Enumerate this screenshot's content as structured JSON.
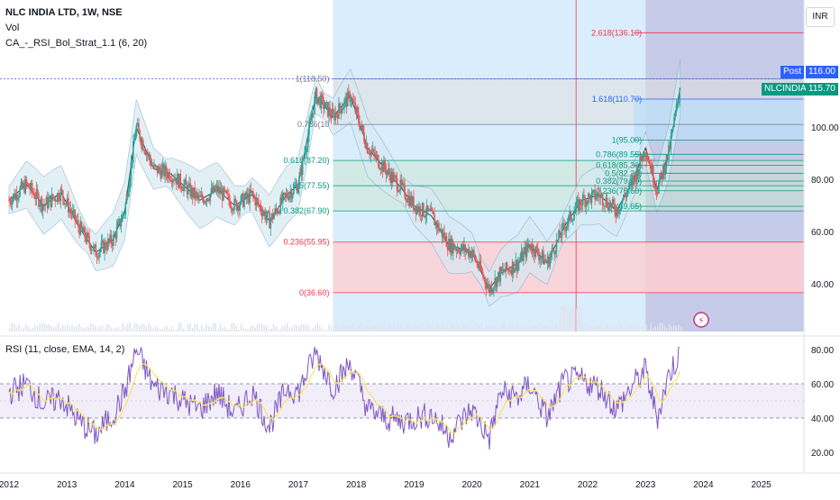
{
  "header": {
    "title": "NLC INDIA LTD, 1W, NSE",
    "vol": "Vol",
    "indicator": "CA_-_RSI_Bol_Strat_1.1 (6, 20)",
    "rsi_label": "RSI (11, close, EMA, 14, 2)"
  },
  "currency_button": "INR",
  "price_tags": [
    {
      "label": "Post",
      "value": "116.00",
      "color": "#2962ff"
    },
    {
      "label": "NLCINDIA",
      "value": "115.70",
      "color": "#089981"
    }
  ],
  "colors": {
    "up": "#26a69a",
    "down": "#ef5350",
    "bollinger": "#8fb4c9",
    "bb_fill": "#d6eaf3",
    "rsi": "#7e57c2",
    "rsi_ema": "#f7e463",
    "fib_red": "#f23645",
    "fib_blue": "#2962ff"
  },
  "chart_data": [
    {
      "type": "candlestick",
      "title": "NLC INDIA LTD, 1W, NSE",
      "x_ticks": [
        "2012",
        "2013",
        "2014",
        "2015",
        "2016",
        "2017",
        "2018",
        "2019",
        "2020",
        "2021",
        "2022",
        "2023",
        "2024",
        "2025"
      ],
      "y_ticks": [
        "40.00",
        "60.00",
        "80.00",
        "100.00"
      ],
      "ylim": [
        35,
        145
      ],
      "grid": false,
      "price_approx": [
        [
          2012.0,
          72
        ],
        [
          2012.3,
          78
        ],
        [
          2012.6,
          70
        ],
        [
          2012.9,
          75
        ],
        [
          2013.2,
          62
        ],
        [
          2013.5,
          52
        ],
        [
          2013.8,
          57
        ],
        [
          2014.0,
          68
        ],
        [
          2014.2,
          100
        ],
        [
          2014.5,
          84
        ],
        [
          2014.8,
          82
        ],
        [
          2015.0,
          78
        ],
        [
          2015.3,
          72
        ],
        [
          2015.6,
          76
        ],
        [
          2015.9,
          70
        ],
        [
          2016.2,
          74
        ],
        [
          2016.5,
          64
        ],
        [
          2016.8,
          74
        ],
        [
          2017.0,
          78
        ],
        [
          2017.3,
          112
        ],
        [
          2017.6,
          104
        ],
        [
          2017.9,
          112
        ],
        [
          2018.2,
          92
        ],
        [
          2018.5,
          84
        ],
        [
          2018.8,
          76
        ],
        [
          2019.0,
          70
        ],
        [
          2019.3,
          66
        ],
        [
          2019.6,
          55
        ],
        [
          2020.0,
          52
        ],
        [
          2020.3,
          38
        ],
        [
          2020.5,
          44
        ],
        [
          2020.8,
          48
        ],
        [
          2021.0,
          55
        ],
        [
          2021.3,
          48
        ],
        [
          2021.6,
          62
        ],
        [
          2021.9,
          72
        ],
        [
          2022.2,
          74
        ],
        [
          2022.5,
          68
        ],
        [
          2022.8,
          80
        ],
        [
          2023.0,
          92
        ],
        [
          2023.2,
          76
        ],
        [
          2023.4,
          90
        ],
        [
          2023.6,
          115
        ]
      ],
      "fibonacci_left": [
        {
          "label": "1(118.50)",
          "value": 118.5
        },
        {
          "label": "0.786(10",
          "value": 101.0
        },
        {
          "label": "0.618(87.20)",
          "value": 87.2
        },
        {
          "label": "0.5(77.55)",
          "value": 77.55
        },
        {
          "label": "0.382(67.90)",
          "value": 67.9
        },
        {
          "label": "0.236(55.95)",
          "value": 55.95
        },
        {
          "label": "0(36.60)",
          "value": 36.6
        }
      ],
      "fibonacci_right": [
        {
          "label": "2.618(136.10)",
          "value": 136.1
        },
        {
          "label": "1.618(110.70)",
          "value": 110.7
        },
        {
          "label": "1(95.00)",
          "value": 95.0
        },
        {
          "label": "0.786(89.55)",
          "value": 89.55
        },
        {
          "label": "0.618(85.30)",
          "value": 85.3
        },
        {
          "label": "0.5(82.30)",
          "value": 82.3
        },
        {
          "label": "0.382(79.30)",
          "value": 79.3
        },
        {
          "label": "0.236(75.60)",
          "value": 75.6
        },
        {
          "label": "0(69.65)",
          "value": 69.65
        }
      ]
    },
    {
      "type": "line",
      "title": "RSI (11, close, EMA, 14, 2)",
      "y_ticks": [
        "20.00",
        "40.00",
        "60.00",
        "80.00"
      ],
      "ylim": [
        18,
        85
      ],
      "band": [
        40,
        60
      ],
      "mid": 50,
      "rsi_approx": [
        [
          2012.0,
          55
        ],
        [
          2012.3,
          60
        ],
        [
          2012.6,
          48
        ],
        [
          2012.9,
          52
        ],
        [
          2013.2,
          38
        ],
        [
          2013.5,
          30
        ],
        [
          2013.8,
          42
        ],
        [
          2014.0,
          55
        ],
        [
          2014.2,
          80
        ],
        [
          2014.5,
          58
        ],
        [
          2014.8,
          55
        ],
        [
          2015.0,
          50
        ],
        [
          2015.3,
          45
        ],
        [
          2015.6,
          55
        ],
        [
          2015.9,
          42
        ],
        [
          2016.2,
          55
        ],
        [
          2016.5,
          35
        ],
        [
          2016.8,
          58
        ],
        [
          2017.0,
          55
        ],
        [
          2017.3,
          78
        ],
        [
          2017.6,
          58
        ],
        [
          2017.9,
          72
        ],
        [
          2018.2,
          45
        ],
        [
          2018.5,
          40
        ],
        [
          2018.8,
          38
        ],
        [
          2019.0,
          40
        ],
        [
          2019.3,
          42
        ],
        [
          2019.6,
          30
        ],
        [
          2020.0,
          45
        ],
        [
          2020.3,
          28
        ],
        [
          2020.5,
          55
        ],
        [
          2020.8,
          52
        ],
        [
          2021.0,
          60
        ],
        [
          2021.3,
          40
        ],
        [
          2021.6,
          62
        ],
        [
          2021.9,
          62
        ],
        [
          2022.2,
          58
        ],
        [
          2022.5,
          45
        ],
        [
          2022.8,
          60
        ],
        [
          2023.0,
          68
        ],
        [
          2023.2,
          40
        ],
        [
          2023.4,
          65
        ],
        [
          2023.6,
          78
        ]
      ]
    }
  ]
}
